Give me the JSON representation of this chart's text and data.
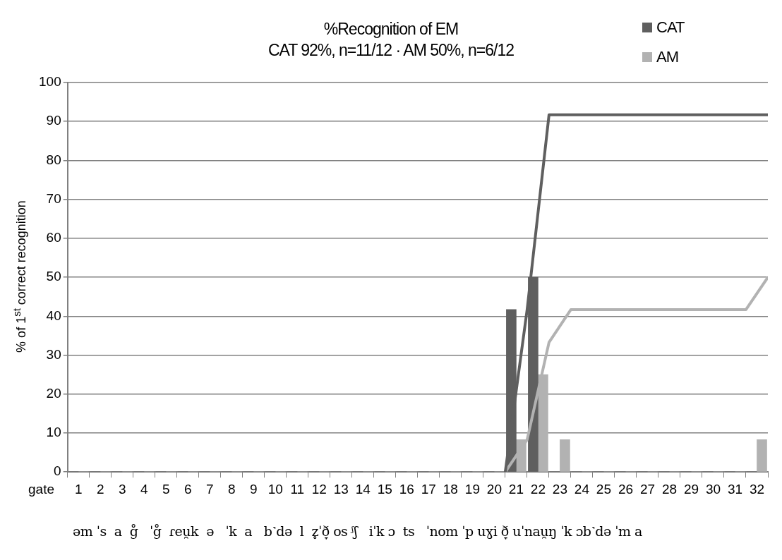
{
  "chart_data": {
    "type": "bar",
    "title": "%Recognition of EM",
    "subtitle": "CAT 92%, n=11/12 · AM 50%, n=6/12",
    "ylabel": "% of 1$^{st}$ correct recognition",
    "x": [
      1,
      2,
      3,
      4,
      5,
      6,
      7,
      8,
      9,
      10,
      11,
      12,
      13,
      14,
      15,
      16,
      17,
      18,
      19,
      20,
      21,
      22,
      23,
      24,
      25,
      26,
      27,
      28,
      29,
      30,
      31,
      32
    ],
    "series": [
      {
        "name": "CAT",
        "color": "#5f5f5f",
        "values": [
          0,
          0,
          0,
          0,
          0,
          0,
          0,
          0,
          0,
          0,
          0,
          0,
          0,
          0,
          0,
          0,
          0,
          0,
          0,
          0,
          41.7,
          50,
          0,
          0,
          0,
          0,
          0,
          0,
          0,
          0,
          0,
          0
        ]
      },
      {
        "name": "AM",
        "color": "#b2b2b2",
        "values": [
          0,
          0,
          0,
          0,
          0,
          0,
          0,
          0,
          0,
          0,
          0,
          0,
          0,
          0,
          0,
          0,
          0,
          0,
          0,
          0,
          8.3,
          25,
          8.3,
          0,
          0,
          0,
          0,
          0,
          0,
          0,
          0,
          8.3
        ]
      },
      {
        "type": "line",
        "color": "#5f5f5f",
        "x": [
          20.5,
          21.5,
          22.5,
          23.5,
          24.5,
          25.5,
          26.5,
          27.5,
          28.5,
          29.5,
          30.5,
          31.5,
          32.5
        ],
        "values": [
          0,
          41.7,
          91.7,
          91.7,
          91.7,
          91.7,
          91.7,
          91.7,
          91.7,
          91.7,
          91.7,
          91.7,
          91.7
        ]
      },
      {
        "type": "line",
        "color": "#b2b2b2",
        "x": [
          20.5,
          21.5,
          22.5,
          23.5,
          24.5,
          25.5,
          26.5,
          27.5,
          28.5,
          29.5,
          30.5,
          31.5,
          32.5
        ],
        "values": [
          0,
          8.3,
          33.3,
          41.7,
          41.7,
          41.7,
          41.7,
          41.7,
          41.7,
          41.7,
          41.7,
          41.7,
          50
        ]
      }
    ],
    "xlim": [
      0.5,
      32.5
    ],
    "xticks": [
      {
        "value": 0.5,
        "label": null
      },
      1,
      {
        "value": 1.5,
        "label": null
      },
      2,
      {
        "value": 2.5,
        "label": null
      },
      3,
      {
        "value": 3.5,
        "label": null
      },
      4,
      {
        "value": 4.5,
        "label": null
      },
      5,
      {
        "value": 5.5,
        "label": null
      },
      6,
      {
        "value": 6.5,
        "label": null
      },
      7,
      {
        "value": 7.5,
        "label": null
      },
      8,
      {
        "value": 8.5,
        "label": null
      },
      9,
      {
        "value": 9.5,
        "label": null
      },
      10,
      {
        "value": 10.5,
        "label": null
      },
      11,
      {
        "value": 11.5,
        "label": null
      },
      12,
      {
        "value": 12.5,
        "label": null
      },
      13,
      {
        "value": 13.5,
        "label": null
      },
      14,
      {
        "value": 14.5,
        "label": null
      },
      15,
      {
        "value": 15.5,
        "label": null
      },
      16,
      {
        "value": 16.5,
        "label": null
      },
      17,
      {
        "value": 17.5,
        "label": null
      },
      18,
      {
        "value": 18.5,
        "label": null
      },
      19,
      {
        "value": 19.5,
        "label": null
      },
      20,
      {
        "value": 20.5,
        "label": null
      },
      21,
      {
        "value": 21.5,
        "label": null
      },
      22,
      {
        "value": 22.5,
        "label": null
      },
      23,
      {
        "value": 23.5,
        "label": null
      },
      24,
      {
        "value": 24.5,
        "label": null
      },
      25,
      {
        "value": 25.5,
        "label": null
      },
      26,
      {
        "value": 26.5,
        "label": null
      },
      27,
      {
        "value": 27.5,
        "label": null
      },
      28,
      {
        "value": 28.5,
        "label": null
      },
      29,
      {
        "value": 29.5,
        "label": null
      },
      30,
      {
        "value": 30.5,
        "label": null
      },
      31,
      {
        "value": 31.5,
        "label": null
      },
      32,
      {
        "value": 32.5,
        "label": null
      }
    ],
    "ylim": [
      0,
      100
    ],
    "yticks": [
      0,
      10,
      20,
      30,
      40,
      50,
      60,
      70,
      80,
      90,
      100
    ],
    "grid": "y",
    "legend": "top right",
    "marker": "none",
    "annotations": [
      "gate",
      "əm ˈs  a  g̊   ˈg̊  ɾeu̯k  ə   ˈk  a   b˺də  l  z̥ˈð̞ os ᶴʃ   iˈk ɔ  ts   ˈnom ˈp uɣi ð̞ uˈnau̯ŋ ˈk ɔb˺də ˈm a"
    ]
  }
}
